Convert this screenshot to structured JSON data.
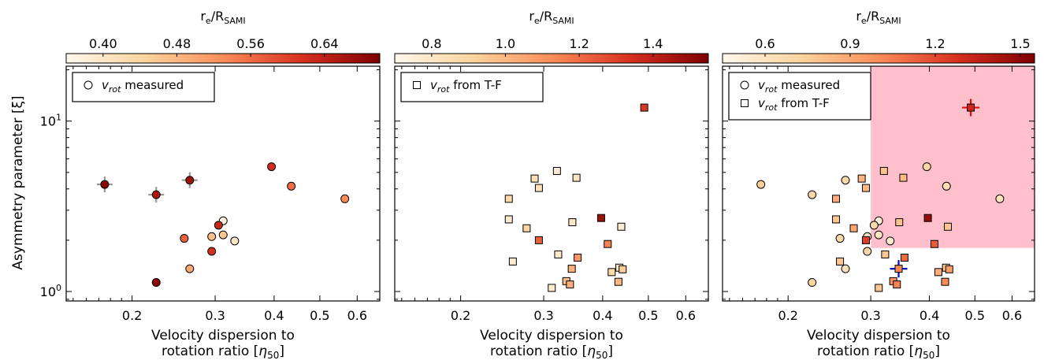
{
  "shared": {
    "ylabel": "Asymmetry parameter [ξ]",
    "xlabel_line1": "Velocity dispersion to",
    "xlabel_line2": "rotation ratio [η50]",
    "colorbar_label": "re/RSAMI",
    "colormap": [
      "#fff7ec",
      "#fdd49e",
      "#fc8d59",
      "#d7301f",
      "#7f0000"
    ],
    "highlight_color": "#ffc0cb",
    "errorbar_gray": "#999999",
    "errorbar_red": "#ff0000",
    "errorbar_blue": "#0000cc"
  },
  "chart_data": [
    {
      "type": "scatter",
      "xscale": "log",
      "yscale": "log",
      "xlim": [
        0.145,
        0.67
      ],
      "ylim": [
        0.88,
        21
      ],
      "xticks": [
        0.2,
        0.3,
        0.4,
        0.5,
        0.6
      ],
      "xtick_labels": [
        "0.2",
        "0.3",
        "0.4",
        "0.5",
        "0.6"
      ],
      "yticks": [
        1,
        10
      ],
      "ytick_labels": [
        "10⁰",
        "10¹"
      ],
      "colorbar": {
        "range": [
          0.36,
          0.7
        ],
        "ticks": [
          0.4,
          0.48,
          0.56,
          0.64
        ],
        "tick_labels": [
          "0.40",
          "0.48",
          "0.56",
          "0.64"
        ]
      },
      "legend": {
        "position": "top-left",
        "entries": [
          {
            "marker": "circle",
            "label": "v_rot measured"
          }
        ]
      },
      "series": [
        {
          "marker": "circle",
          "points": [
            {
              "x": 0.175,
              "y": 4.25,
              "c": 0.69,
              "err": "gray"
            },
            {
              "x": 0.225,
              "y": 3.7,
              "c": 0.66,
              "err": "gray"
            },
            {
              "x": 0.265,
              "y": 4.5,
              "c": 0.67,
              "err": "gray"
            },
            {
              "x": 0.395,
              "y": 5.4,
              "c": 0.62
            },
            {
              "x": 0.435,
              "y": 4.15,
              "c": 0.56
            },
            {
              "x": 0.565,
              "y": 3.5,
              "c": 0.53
            },
            {
              "x": 0.312,
              "y": 2.6,
              "c": 0.38
            },
            {
              "x": 0.305,
              "y": 2.45,
              "c": 0.63
            },
            {
              "x": 0.312,
              "y": 2.15,
              "c": 0.46
            },
            {
              "x": 0.295,
              "y": 2.1,
              "c": 0.47
            },
            {
              "x": 0.33,
              "y": 1.98,
              "c": 0.4
            },
            {
              "x": 0.258,
              "y": 2.05,
              "c": 0.57
            },
            {
              "x": 0.295,
              "y": 1.72,
              "c": 0.62
            },
            {
              "x": 0.265,
              "y": 1.36,
              "c": 0.5
            },
            {
              "x": 0.225,
              "y": 1.13,
              "c": 0.69
            }
          ]
        }
      ]
    },
    {
      "type": "scatter",
      "xscale": "log",
      "yscale": "log",
      "xlim": [
        0.145,
        0.67
      ],
      "ylim": [
        0.88,
        21
      ],
      "xticks": [
        0.2,
        0.3,
        0.4,
        0.5,
        0.6
      ],
      "xtick_labels": [
        "0.2",
        "0.3",
        "0.4",
        "0.5",
        "0.6"
      ],
      "yticks": [
        1,
        10
      ],
      "ytick_labels": [
        "",
        ""
      ],
      "colorbar": {
        "range": [
          0.7,
          1.55
        ],
        "ticks": [
          0.8,
          1.0,
          1.2,
          1.4
        ],
        "tick_labels": [
          "0.8",
          "1.0",
          "1.2",
          "1.4"
        ]
      },
      "legend": {
        "position": "top-left",
        "entries": [
          {
            "marker": "square",
            "label": "v_rot from T-F"
          }
        ]
      },
      "series": [
        {
          "marker": "square",
          "points": [
            {
              "x": 0.49,
              "y": 12.0,
              "c": 1.32
            },
            {
              "x": 0.287,
              "y": 4.6,
              "c": 0.85
            },
            {
              "x": 0.32,
              "y": 5.1,
              "c": 0.78
            },
            {
              "x": 0.352,
              "y": 4.65,
              "c": 0.82
            },
            {
              "x": 0.293,
              "y": 4.05,
              "c": 0.83
            },
            {
              "x": 0.253,
              "y": 3.5,
              "c": 0.88
            },
            {
              "x": 0.253,
              "y": 2.65,
              "c": 0.78
            },
            {
              "x": 0.276,
              "y": 2.35,
              "c": 0.9
            },
            {
              "x": 0.345,
              "y": 2.55,
              "c": 0.8
            },
            {
              "x": 0.397,
              "y": 2.7,
              "c": 1.48
            },
            {
              "x": 0.438,
              "y": 2.4,
              "c": 0.78
            },
            {
              "x": 0.293,
              "y": 2.0,
              "c": 1.23
            },
            {
              "x": 0.41,
              "y": 1.9,
              "c": 1.15
            },
            {
              "x": 0.322,
              "y": 1.65,
              "c": 0.78
            },
            {
              "x": 0.354,
              "y": 1.58,
              "c": 1.1
            },
            {
              "x": 0.258,
              "y": 1.5,
              "c": 0.78
            },
            {
              "x": 0.344,
              "y": 1.36,
              "c": 1.02
            },
            {
              "x": 0.418,
              "y": 1.3,
              "c": 0.88
            },
            {
              "x": 0.434,
              "y": 1.38,
              "c": 0.8
            },
            {
              "x": 0.441,
              "y": 1.35,
              "c": 0.93
            },
            {
              "x": 0.335,
              "y": 1.15,
              "c": 0.98
            },
            {
              "x": 0.341,
              "y": 1.1,
              "c": 1.03
            },
            {
              "x": 0.432,
              "y": 1.14,
              "c": 1.0
            },
            {
              "x": 0.312,
              "y": 1.05,
              "c": 0.78
            }
          ]
        }
      ]
    },
    {
      "type": "scatter",
      "xscale": "log",
      "yscale": "log",
      "xlim": [
        0.145,
        0.67
      ],
      "ylim": [
        0.88,
        21
      ],
      "xticks": [
        0.2,
        0.3,
        0.4,
        0.5,
        0.6
      ],
      "xtick_labels": [
        "0.2",
        "0.3",
        "0.4",
        "0.5",
        "0.6"
      ],
      "yticks": [
        1,
        10
      ],
      "ytick_labels": [
        "",
        ""
      ],
      "colorbar": {
        "range": [
          0.45,
          1.55
        ],
        "ticks": [
          0.6,
          0.9,
          1.2,
          1.5
        ],
        "tick_labels": [
          "0.6",
          "0.9",
          "1.2",
          "1.5"
        ]
      },
      "highlight_region": {
        "x": [
          0.3,
          0.67
        ],
        "y": [
          1.8,
          21
        ]
      },
      "legend": {
        "position": "top-left",
        "entries": [
          {
            "marker": "circle",
            "label": "v_rot measured"
          },
          {
            "marker": "square",
            "label": "v_rot from T-F"
          }
        ]
      },
      "series": [
        {
          "marker": "circle",
          "points": [
            {
              "x": 0.175,
              "y": 4.25,
              "c": 0.75
            },
            {
              "x": 0.225,
              "y": 3.7,
              "c": 0.7
            },
            {
              "x": 0.265,
              "y": 4.5,
              "c": 0.68
            },
            {
              "x": 0.395,
              "y": 5.4,
              "c": 0.7
            },
            {
              "x": 0.435,
              "y": 4.15,
              "c": 0.65
            },
            {
              "x": 0.565,
              "y": 3.5,
              "c": 0.6
            },
            {
              "x": 0.312,
              "y": 2.6,
              "c": 0.52
            },
            {
              "x": 0.305,
              "y": 2.45,
              "c": 0.68
            },
            {
              "x": 0.312,
              "y": 2.15,
              "c": 0.6
            },
            {
              "x": 0.295,
              "y": 2.1,
              "c": 0.6
            },
            {
              "x": 0.33,
              "y": 1.98,
              "c": 0.55
            },
            {
              "x": 0.258,
              "y": 2.05,
              "c": 0.68
            },
            {
              "x": 0.295,
              "y": 1.72,
              "c": 0.7
            },
            {
              "x": 0.265,
              "y": 1.36,
              "c": 0.62
            },
            {
              "x": 0.225,
              "y": 1.13,
              "c": 0.72
            }
          ]
        },
        {
          "marker": "square",
          "points": [
            {
              "x": 0.49,
              "y": 12.0,
              "c": 1.32,
              "err": "red"
            },
            {
              "x": 0.287,
              "y": 4.6,
              "c": 0.85
            },
            {
              "x": 0.32,
              "y": 5.1,
              "c": 0.78
            },
            {
              "x": 0.352,
              "y": 4.65,
              "c": 0.82
            },
            {
              "x": 0.293,
              "y": 4.05,
              "c": 0.83
            },
            {
              "x": 0.253,
              "y": 3.5,
              "c": 0.88
            },
            {
              "x": 0.253,
              "y": 2.65,
              "c": 0.78
            },
            {
              "x": 0.276,
              "y": 2.35,
              "c": 0.9
            },
            {
              "x": 0.345,
              "y": 2.55,
              "c": 0.8
            },
            {
              "x": 0.397,
              "y": 2.7,
              "c": 1.48
            },
            {
              "x": 0.438,
              "y": 2.4,
              "c": 0.78
            },
            {
              "x": 0.293,
              "y": 2.0,
              "c": 1.23
            },
            {
              "x": 0.41,
              "y": 1.9,
              "c": 1.15
            },
            {
              "x": 0.322,
              "y": 1.65,
              "c": 0.78
            },
            {
              "x": 0.354,
              "y": 1.58,
              "c": 1.1
            },
            {
              "x": 0.258,
              "y": 1.5,
              "c": 0.78
            },
            {
              "x": 0.344,
              "y": 1.36,
              "c": 1.02,
              "err": "blue"
            },
            {
              "x": 0.418,
              "y": 1.3,
              "c": 0.88
            },
            {
              "x": 0.434,
              "y": 1.38,
              "c": 0.8
            },
            {
              "x": 0.441,
              "y": 1.35,
              "c": 0.93
            },
            {
              "x": 0.335,
              "y": 1.15,
              "c": 0.98
            },
            {
              "x": 0.341,
              "y": 1.1,
              "c": 1.03
            },
            {
              "x": 0.432,
              "y": 1.14,
              "c": 1.0
            },
            {
              "x": 0.312,
              "y": 1.05,
              "c": 0.78
            }
          ]
        }
      ]
    }
  ]
}
